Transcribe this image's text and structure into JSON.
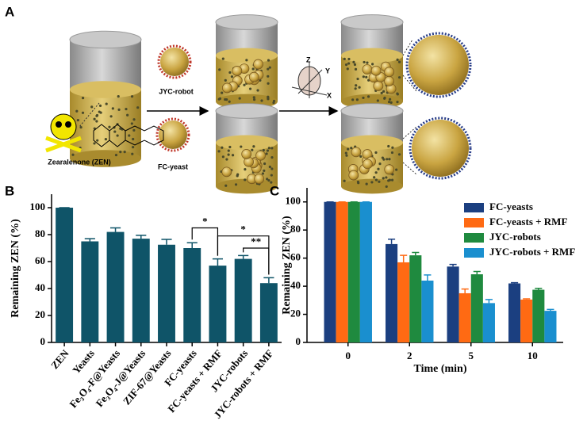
{
  "schematic": {
    "panel_label": "A",
    "jyc_robot": "JYC-robot",
    "fc_yeast": "FC-yeast",
    "zen": "Zearalenone (ZEN)",
    "axes": [
      "Z",
      "Y",
      "X"
    ]
  },
  "chart_data": [
    {
      "type": "bar",
      "panel_label": "B",
      "ylabel": "Remaining ZEN (%)",
      "categories": [
        "ZEN",
        "Yeasts",
        "Fe₃O₄-F@Yeasts",
        "Fe₃O₄-J@Yeasts",
        "ZIF-67@Yeasts",
        "FC-yeasts",
        "FC-yeasts + RMF",
        "JYC-robots",
        "JYC-robots + RMF"
      ],
      "values": [
        100,
        75,
        82,
        77,
        72.5,
        70,
        57,
        62,
        44
      ],
      "errors": [
        0,
        2,
        3,
        2.5,
        4,
        4,
        5,
        2.5,
        4
      ],
      "color": "#0f5468",
      "ylim": [
        0,
        110
      ],
      "yticks": [
        0,
        20,
        40,
        60,
        80,
        100
      ],
      "annotations": [
        {
          "text": "*",
          "between": [
            "FC-yeasts",
            "FC-yeasts + RMF"
          ]
        },
        {
          "text": "*",
          "between": [
            "FC-yeasts + RMF",
            "JYC-robots + RMF"
          ]
        },
        {
          "text": "**",
          "between": [
            "JYC-robots",
            "JYC-robots + RMF"
          ]
        }
      ]
    },
    {
      "type": "bar",
      "panel_label": "C",
      "ylabel": "Remaining ZEN (%)",
      "xlabel": "Time (min)",
      "categories": [
        "0",
        "2",
        "5",
        "10"
      ],
      "series": [
        {
          "name": "FC-yeasts",
          "color": "#1b3f80",
          "values": [
            100,
            70,
            54,
            42
          ],
          "errors": [
            0,
            3.5,
            1.5,
            0.5
          ]
        },
        {
          "name": "FC-yeasts + RMF",
          "color": "#ff6a13",
          "values": [
            100,
            57,
            35,
            30.5
          ],
          "errors": [
            0,
            5,
            3,
            0.5
          ]
        },
        {
          "name": "JYC-robots",
          "color": "#1f8a3f",
          "values": [
            100,
            62,
            48.5,
            37.5
          ],
          "errors": [
            0,
            2,
            2,
            1
          ]
        },
        {
          "name": "JYC-robots + RMF",
          "color": "#1a8fcf",
          "values": [
            100,
            44,
            28,
            22.5
          ],
          "errors": [
            0,
            4,
            2.5,
            1
          ]
        }
      ],
      "ylim": [
        0,
        110
      ],
      "yticks": [
        0,
        20,
        40,
        60,
        80,
        100
      ],
      "legend": "upper-right"
    }
  ]
}
